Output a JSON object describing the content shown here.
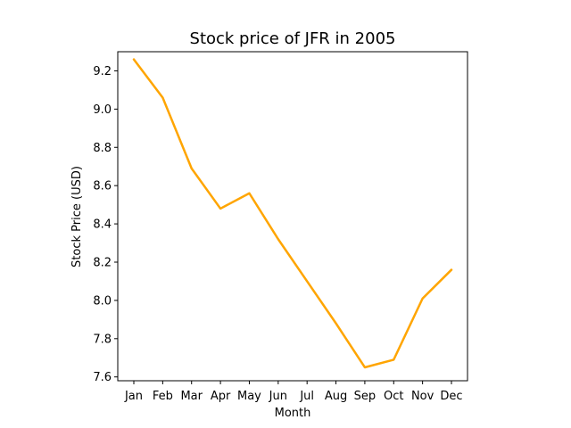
{
  "chart_data": {
    "type": "line",
    "title": "Stock price of JFR in 2005",
    "xlabel": "Month",
    "ylabel": "Stock Price (USD)",
    "categories": [
      "Jan",
      "Feb",
      "Mar",
      "Apr",
      "May",
      "Jun",
      "Jul",
      "Aug",
      "Sep",
      "Oct",
      "Nov",
      "Dec"
    ],
    "series": [
      {
        "values": [
          9.26,
          9.06,
          8.69,
          8.48,
          8.56,
          8.32,
          8.1,
          7.88,
          7.65,
          7.69,
          8.01,
          8.16
        ],
        "color": "#FFA500"
      }
    ],
    "yticks": [
      "7.6",
      "7.8",
      "8.0",
      "8.2",
      "8.4",
      "8.6",
      "8.8",
      "9.0",
      "9.2"
    ],
    "ylim": [
      7.58,
      9.3
    ],
    "grid": false,
    "legend": "none"
  }
}
